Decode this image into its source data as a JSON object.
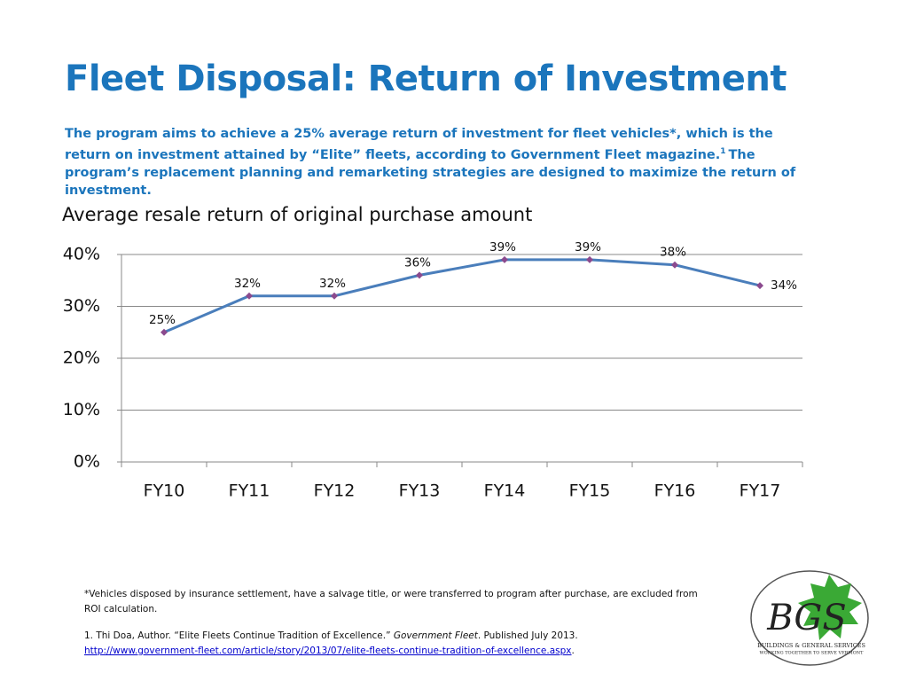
{
  "header": {
    "title": "Fleet Disposal: Return of Investment",
    "description": {
      "before": "The program aims to achieve a 25% average return of investment for fleet vehicles*, which is the return on investment attained by “Elite” fleets, according to Government Fleet magazine.",
      "superscript": "1",
      "after": "The program’s replacement planning and remarketing strategies are designed to maximize the return of investment."
    }
  },
  "chart_data": {
    "type": "line",
    "title": "Average resale return of original purchase amount",
    "categories": [
      "FY10",
      "FY11",
      "FY12",
      "FY13",
      "FY14",
      "FY15",
      "FY16",
      "FY17"
    ],
    "values": [
      25,
      32,
      32,
      36,
      39,
      39,
      38,
      34
    ],
    "value_labels": [
      "25%",
      "32%",
      "32%",
      "36%",
      "39%",
      "39%",
      "38%",
      "34%"
    ],
    "color": "#4a7ebb",
    "marker_color": "#8b4a8e",
    "ylim": [
      0,
      40
    ],
    "yticks": [
      {
        "value": 0,
        "label": "0%"
      },
      {
        "value": 10,
        "label": "10%"
      },
      {
        "value": 20,
        "label": "20%"
      },
      {
        "value": 30,
        "label": "30%"
      },
      {
        "value": 40,
        "label": "40%"
      }
    ],
    "grid": true
  },
  "footnotes": {
    "note": "*Vehicles disposed by insurance settlement, have a salvage title, or were transferred to program after purchase, are excluded from ROI calculation.",
    "citation": {
      "before": "1. Thi Doa, Author. “Elite Fleets Continue Tradition of Excellence.”",
      "italic": "Government Fleet",
      "after": ". Published July 2013.",
      "link": "http://www.government-fleet.com/article/story/2013/07/elite-fleets-continue-tradition-of-excellence.aspx",
      "end": "."
    }
  },
  "logo": {
    "initials": "BGS",
    "name": "BUILDINGS & GENERAL SERVICES",
    "motto": "WORKING TOGETHER TO SERVE VERMONT"
  }
}
